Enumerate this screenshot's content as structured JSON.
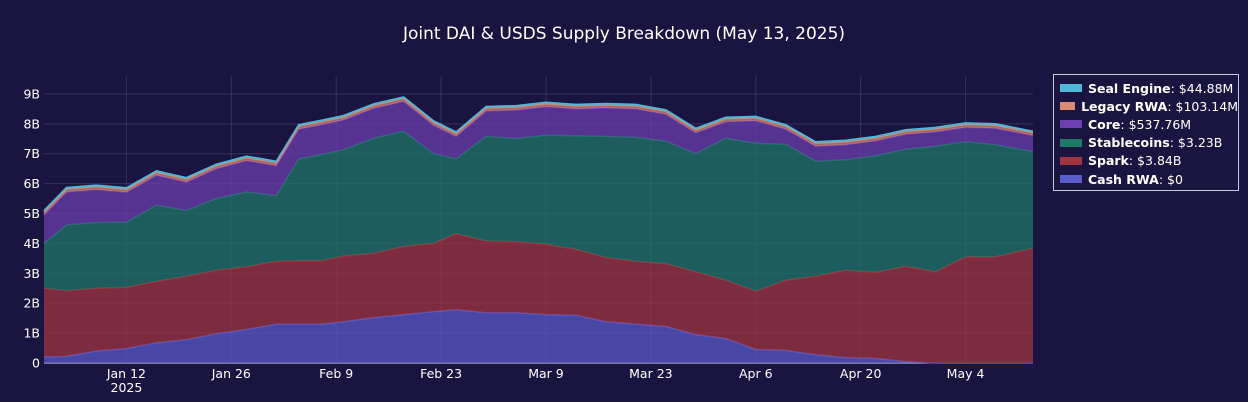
{
  "chart_data": {
    "type": "area",
    "stacked": true,
    "title": "Joint DAI & USDS Supply Breakdown (May 13, 2025)",
    "x_start": "2025-01-01",
    "x_end": "2025-05-13",
    "x_ticks": [
      {
        "date": "2025-01-12",
        "label": "Jan 12",
        "sublabel": "2025"
      },
      {
        "date": "2025-01-26",
        "label": "Jan 26",
        "sublabel": ""
      },
      {
        "date": "2025-02-09",
        "label": "Feb 9",
        "sublabel": ""
      },
      {
        "date": "2025-02-23",
        "label": "Feb 23",
        "sublabel": ""
      },
      {
        "date": "2025-03-09",
        "label": "Mar 9",
        "sublabel": ""
      },
      {
        "date": "2025-03-23",
        "label": "Mar 23",
        "sublabel": ""
      },
      {
        "date": "2025-04-06",
        "label": "Apr 6",
        "sublabel": ""
      },
      {
        "date": "2025-04-20",
        "label": "Apr 20",
        "sublabel": ""
      },
      {
        "date": "2025-05-04",
        "label": "May 4",
        "sublabel": ""
      }
    ],
    "y_ticks": [
      {
        "value": 0,
        "label": "0"
      },
      {
        "value": 1,
        "label": "1B"
      },
      {
        "value": 2,
        "label": "2B"
      },
      {
        "value": 3,
        "label": "3B"
      },
      {
        "value": 4,
        "label": "4B"
      },
      {
        "value": 5,
        "label": "5B"
      },
      {
        "value": 6,
        "label": "6B"
      },
      {
        "value": 7,
        "label": "7B"
      },
      {
        "value": 8,
        "label": "8B"
      },
      {
        "value": 9,
        "label": "9B"
      }
    ],
    "ylim": [
      0,
      9.6
    ],
    "grid": true,
    "legend_position": "top-right",
    "x": [
      "2025-01-01",
      "2025-01-04",
      "2025-01-08",
      "2025-01-12",
      "2025-01-16",
      "2025-01-20",
      "2025-01-24",
      "2025-01-28",
      "2025-02-01",
      "2025-02-04",
      "2025-02-07",
      "2025-02-10",
      "2025-02-14",
      "2025-02-18",
      "2025-02-22",
      "2025-02-25",
      "2025-03-01",
      "2025-03-05",
      "2025-03-09",
      "2025-03-13",
      "2025-03-17",
      "2025-03-21",
      "2025-03-25",
      "2025-03-29",
      "2025-04-02",
      "2025-04-06",
      "2025-04-10",
      "2025-04-14",
      "2025-04-18",
      "2025-04-22",
      "2025-04-26",
      "2025-04-30",
      "2025-05-04",
      "2025-05-08",
      "2025-05-13"
    ],
    "series": [
      {
        "name": "Cash RWA",
        "display_value": "$0",
        "color": "#5a5ccc",
        "values": [
          0.2,
          0.22,
          0.4,
          0.48,
          0.68,
          0.78,
          0.98,
          1.12,
          1.3,
          1.3,
          1.3,
          1.38,
          1.52,
          1.62,
          1.72,
          1.78,
          1.68,
          1.68,
          1.62,
          1.6,
          1.38,
          1.3,
          1.22,
          0.95,
          0.82,
          0.45,
          0.42,
          0.28,
          0.18,
          0.15,
          0.05,
          0,
          0,
          0,
          0
        ]
      },
      {
        "name": "Spark",
        "display_value": "$3.84B",
        "color": "#a3343f",
        "values": [
          2.3,
          2.2,
          2.1,
          2.05,
          2.05,
          2.12,
          2.12,
          2.1,
          2.1,
          2.12,
          2.12,
          2.2,
          2.15,
          2.28,
          2.28,
          2.55,
          2.4,
          2.38,
          2.35,
          2.2,
          2.15,
          2.1,
          2.1,
          2.1,
          1.95,
          1.95,
          2.35,
          2.62,
          2.92,
          2.88,
          3.18,
          3.05,
          3.55,
          3.55,
          3.84
        ]
      },
      {
        "name": "Stablecoins",
        "display_value": "$3.23B",
        "color": "#1f7a6a",
        "values": [
          1.5,
          2.2,
          2.2,
          2.18,
          2.55,
          2.2,
          2.4,
          2.5,
          2.2,
          3.4,
          3.55,
          3.55,
          3.85,
          3.85,
          3.0,
          2.5,
          3.5,
          3.45,
          3.65,
          3.8,
          4.05,
          4.15,
          4.1,
          3.95,
          4.75,
          4.95,
          4.55,
          3.85,
          3.7,
          3.9,
          3.92,
          4.2,
          3.85,
          3.75,
          3.23
        ]
      },
      {
        "name": "Core",
        "display_value": "$537.76M",
        "color": "#6e3fb0",
        "values": [
          0.95,
          1.1,
          1.1,
          1.0,
          1.0,
          0.95,
          1.0,
          1.05,
          1.0,
          1.0,
          1.0,
          1.0,
          1.0,
          1.0,
          0.95,
          0.75,
          0.85,
          0.95,
          0.95,
          0.9,
          0.95,
          0.95,
          0.9,
          0.7,
          0.55,
          0.75,
          0.5,
          0.5,
          0.5,
          0.5,
          0.5,
          0.48,
          0.48,
          0.55,
          0.54
        ]
      },
      {
        "name": "Legacy RWA",
        "display_value": "$103.14M",
        "color": "#d98a70",
        "values": [
          0.1,
          0.1,
          0.1,
          0.1,
          0.1,
          0.1,
          0.1,
          0.1,
          0.1,
          0.1,
          0.1,
          0.1,
          0.1,
          0.1,
          0.1,
          0.1,
          0.1,
          0.1,
          0.1,
          0.1,
          0.1,
          0.1,
          0.1,
          0.1,
          0.1,
          0.1,
          0.1,
          0.1,
          0.1,
          0.1,
          0.1,
          0.1,
          0.1,
          0.1,
          0.1
        ]
      },
      {
        "name": "Seal Engine",
        "display_value": "$44.88M",
        "color": "#4fb7d8",
        "values": [
          0.05,
          0.05,
          0.05,
          0.05,
          0.05,
          0.05,
          0.05,
          0.05,
          0.05,
          0.05,
          0.05,
          0.05,
          0.05,
          0.05,
          0.05,
          0.05,
          0.05,
          0.05,
          0.05,
          0.05,
          0.05,
          0.05,
          0.05,
          0.05,
          0.05,
          0.05,
          0.05,
          0.05,
          0.05,
          0.05,
          0.05,
          0.05,
          0.05,
          0.05,
          0.045
        ]
      }
    ]
  }
}
